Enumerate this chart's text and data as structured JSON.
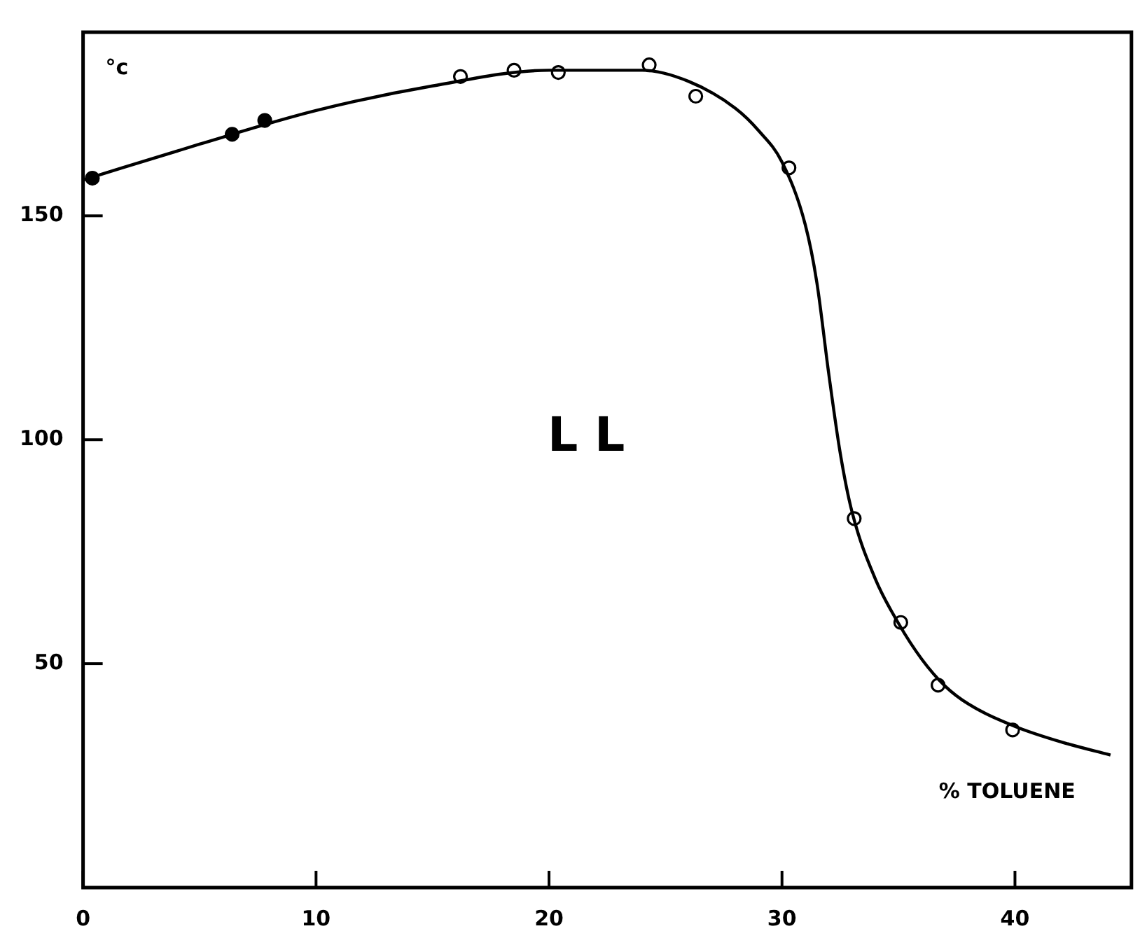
{
  "chart_data": {
    "type": "scatter",
    "xlabel": "% TOLUENE",
    "ylabel": "°c",
    "annotations": [
      "L L"
    ],
    "xlim": [
      0,
      45
    ],
    "xticks": [
      0,
      10,
      20,
      30,
      40
    ],
    "ylim": [
      0,
      191
    ],
    "yticks": [
      50,
      100,
      150
    ],
    "grid": false,
    "legend": false,
    "marker": "circle",
    "series": [
      {
        "type": "line",
        "color": "#000000",
        "marker": "none",
        "x": [
          0,
          5,
          10,
          15,
          20,
          24,
          26,
          28,
          29,
          30,
          31,
          31.5,
          32,
          32.5,
          33,
          34,
          35,
          36,
          37,
          38,
          40,
          42,
          44.1
        ],
        "values": [
          158,
          166,
          173.5,
          179,
          182.5,
          182.5,
          180,
          174,
          169,
          162,
          148,
          135,
          115,
          97,
          84,
          69,
          59,
          51,
          45,
          41,
          36,
          32.5,
          29.6
        ]
      },
      {
        "color": "#000000",
        "x": [
          0.4,
          6.4,
          7.8
        ],
        "values": [
          158.4,
          168.2,
          171.3
        ]
      },
      {
        "color": "#ffffff",
        "x": [
          16.2,
          18.5,
          20.4,
          24.3,
          26.3,
          30.3,
          33.1,
          35.1,
          36.7,
          39.9
        ],
        "values": [
          181.1,
          182.5,
          182,
          183.7,
          176.7,
          160.7,
          82.4,
          59.2,
          45.2,
          35.2
        ]
      }
    ]
  }
}
